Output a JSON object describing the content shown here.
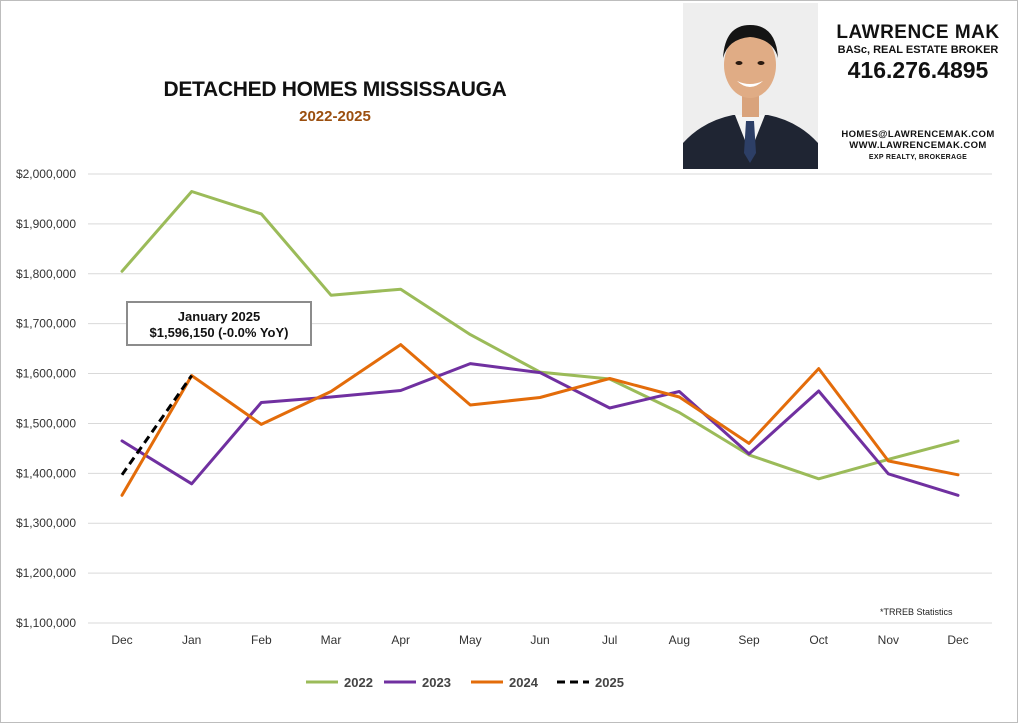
{
  "title": "DETACHED HOMES MISSISSAUGA",
  "subtitle": "2022-2025",
  "agent": {
    "name": "LAWRENCE MAK",
    "credentials": "BASc, REAL ESTATE BROKER",
    "phone": "416.276.4895",
    "email": "HOMES@LAWRENCEMAK.COM",
    "website": "WWW.LAWRENCEMAK.COM",
    "brokerage": "EXP REALTY, BROKERAGE"
  },
  "callout": {
    "line1": "January 2025",
    "line2": "$1,596,150 (-0.0% YoY)"
  },
  "source_note": "*TRREB Statistics",
  "chart_data": {
    "type": "line",
    "title": "DETACHED HOMES MISSISSAUGA",
    "subtitle": "2022-2025",
    "xlabel": "",
    "ylabel": "",
    "categories": [
      "Dec",
      "Jan",
      "Feb",
      "Mar",
      "Apr",
      "May",
      "Jun",
      "Jul",
      "Aug",
      "Sep",
      "Oct",
      "Nov",
      "Dec"
    ],
    "ylim": [
      1100000,
      2000000
    ],
    "yticks": [
      1100000,
      1200000,
      1300000,
      1400000,
      1500000,
      1600000,
      1700000,
      1800000,
      1900000,
      2000000
    ],
    "ytick_labels": [
      "$1,100,000",
      "$1,200,000",
      "$1,300,000",
      "$1,400,000",
      "$1,500,000",
      "$1,600,000",
      "$1,700,000",
      "$1,800,000",
      "$1,900,000",
      "$2,000,000"
    ],
    "grid": true,
    "legend_position": "bottom",
    "series": [
      {
        "name": "2022",
        "color": "#9bbb59",
        "dashed": false,
        "values": [
          1805000,
          1965000,
          1920000,
          1757000,
          1769000,
          1678000,
          1603000,
          1589000,
          1522000,
          1437000,
          1389000,
          1428000,
          1465000
        ]
      },
      {
        "name": "2023",
        "color": "#7030a0",
        "dashed": false,
        "values": [
          1465000,
          1379000,
          1542000,
          1553000,
          1566000,
          1620000,
          1602000,
          1531000,
          1564000,
          1439000,
          1565000,
          1399000,
          1356000
        ]
      },
      {
        "name": "2024",
        "color": "#e36c0a",
        "dashed": false,
        "values": [
          1356000,
          1596000,
          1498000,
          1564000,
          1658000,
          1537000,
          1552000,
          1590000,
          1553000,
          1460000,
          1610000,
          1425000,
          1397000
        ]
      },
      {
        "name": "2025",
        "color": "#000000",
        "dashed": true,
        "values": [
          1397000,
          1596150,
          null,
          null,
          null,
          null,
          null,
          null,
          null,
          null,
          null,
          null,
          null
        ]
      }
    ]
  }
}
